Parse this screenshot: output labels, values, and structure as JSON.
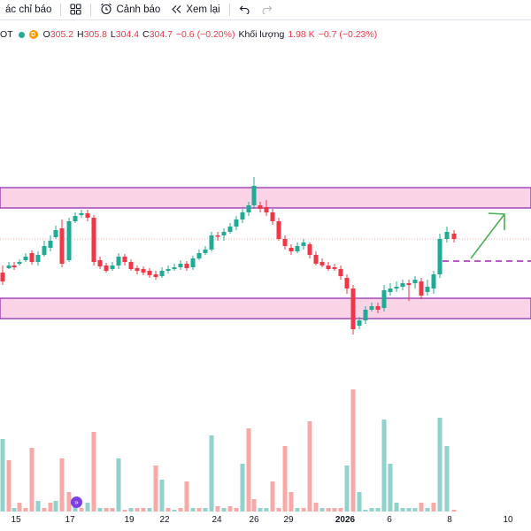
{
  "toolbar": {
    "indicators_label": "ác chỉ báo",
    "alerts_label": "Cảnh báo",
    "replay_label": "Xem lại"
  },
  "legend": {
    "symbol": "OT",
    "o_label": "O",
    "o_value": "305.2",
    "h_label": "H",
    "h_value": "305.8",
    "l_label": "L",
    "l_value": "304.4",
    "c_label": "C",
    "c_value": "304.7",
    "change": "−0.6 (−0.20%)",
    "volume_label": "Khối lượng",
    "volume_value": "1.98 K",
    "volume_change": "−0.7 (−0.23%)"
  },
  "x_axis": {
    "labels": [
      "15",
      "17",
      "19",
      "22",
      "24",
      "26",
      "29",
      "2026",
      "6",
      "8",
      "10"
    ]
  },
  "colors": {
    "up": "#22ab94",
    "down": "#f23645",
    "up_volume": "#92d2cc",
    "down_volume": "#f7a9a7",
    "zone_fill": "#fbd3e6",
    "zone_border": "#8e24aa",
    "arrow": "#4caf50",
    "dash": "#9c27b0"
  },
  "chart_data": {
    "type": "candlestick",
    "x": [
      "15",
      "17",
      "19",
      "22",
      "24",
      "26",
      "29",
      "2026",
      "6",
      "8",
      "10"
    ],
    "last_close": 304.7
  }
}
